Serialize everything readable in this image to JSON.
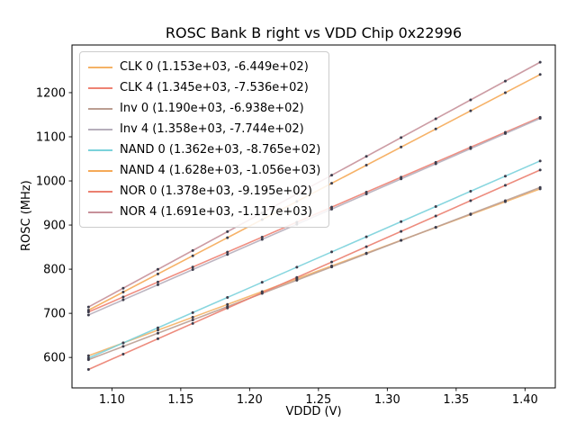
{
  "chart_data": {
    "type": "scatter",
    "title": "ROSC Bank B right vs VDD Chip 0x22996",
    "xlabel": "VDDD (V)",
    "ylabel": "ROSC (MHz)",
    "xlim": [
      1.071,
      1.422
    ],
    "ylim": [
      531,
      1308
    ],
    "x_ticks": {
      "values": [
        1.1,
        1.15,
        1.2,
        1.25,
        1.3,
        1.35,
        1.4
      ],
      "labels": [
        "1.10",
        "1.15",
        "1.20",
        "1.25",
        "1.30",
        "1.35",
        "1.40"
      ]
    },
    "y_ticks": {
      "values": [
        600,
        700,
        800,
        900,
        1000,
        1100,
        1200
      ],
      "labels": [
        "600",
        "700",
        "800",
        "900",
        "1000",
        "1100",
        "1200"
      ]
    },
    "x_range": [
      1.083,
      1.411
    ],
    "x_samples": [
      1.083,
      1.1082,
      1.1334,
      1.1587,
      1.1839,
      1.2091,
      1.2343,
      1.2596,
      1.2848,
      1.31,
      1.3352,
      1.3605,
      1.3857,
      1.411
    ],
    "point_color": "#3d3d4c",
    "grid": false,
    "legend_position": "upper-left",
    "series": [
      {
        "name": "CLK 0",
        "label": "CLK 0 (1.153e+03, -6.449e+02)",
        "slope": 1153,
        "intercept": -644.9,
        "color": "#f4b266"
      },
      {
        "name": "CLK 4",
        "label": "CLK 4 (1.345e+03, -7.536e+02)",
        "slope": 1345,
        "intercept": -753.6,
        "color": "#ee8273"
      },
      {
        "name": "Inv 0",
        "label": "Inv 0 (1.190e+03, -6.938e+02)",
        "slope": 1190,
        "intercept": -693.8,
        "color": "#bb9e92"
      },
      {
        "name": "Inv 4",
        "label": "Inv 4 (1.358e+03, -7.744e+02)",
        "slope": 1358,
        "intercept": -774.4,
        "color": "#b6aebb"
      },
      {
        "name": "NAND 0",
        "label": "NAND 0 (1.362e+03, -8.765e+02)",
        "slope": 1362,
        "intercept": -876.5,
        "color": "#7bd2db"
      },
      {
        "name": "NAND 4",
        "label": "NAND 4 (1.628e+03, -1.056e+03)",
        "slope": 1628,
        "intercept": -1056,
        "color": "#f5aa58"
      },
      {
        "name": "NOR 0",
        "label": "NOR 0 (1.378e+03, -9.195e+02)",
        "slope": 1378,
        "intercept": -919.5,
        "color": "#eb8070"
      },
      {
        "name": "NOR 4",
        "label": "NOR 4 (1.691e+03, -1.117e+03)",
        "slope": 1691,
        "intercept": -1117,
        "color": "#c7919a"
      }
    ]
  }
}
